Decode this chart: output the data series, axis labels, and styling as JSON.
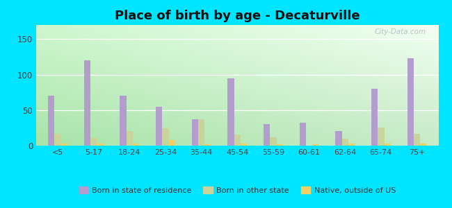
{
  "title": "Place of birth by age - Decaturville",
  "categories": [
    "<5",
    "5-17",
    "18-24",
    "25-34",
    "35-44",
    "45-54",
    "55-59",
    "60-61",
    "62-64",
    "65-74",
    "75+"
  ],
  "born_in_state": [
    70,
    120,
    70,
    55,
    37,
    95,
    30,
    32,
    21,
    80,
    123
  ],
  "born_other_state": [
    17,
    11,
    21,
    24,
    37,
    16,
    12,
    0,
    10,
    25,
    17
  ],
  "native_outside_us": [
    3,
    3,
    3,
    8,
    2,
    3,
    2,
    2,
    3,
    3,
    3
  ],
  "bar_color_state": "#b39dcc",
  "bar_color_other": "#c8d49a",
  "bar_color_native": "#f0d060",
  "outer_bg": "#00e5ff",
  "ylim": [
    0,
    170
  ],
  "yticks": [
    0,
    50,
    100,
    150
  ],
  "bar_width": 0.18,
  "title_fontsize": 13,
  "legend_labels": [
    "Born in state of residence",
    "Born in other state",
    "Native, outside of US"
  ],
  "watermark": "City-Data.com"
}
